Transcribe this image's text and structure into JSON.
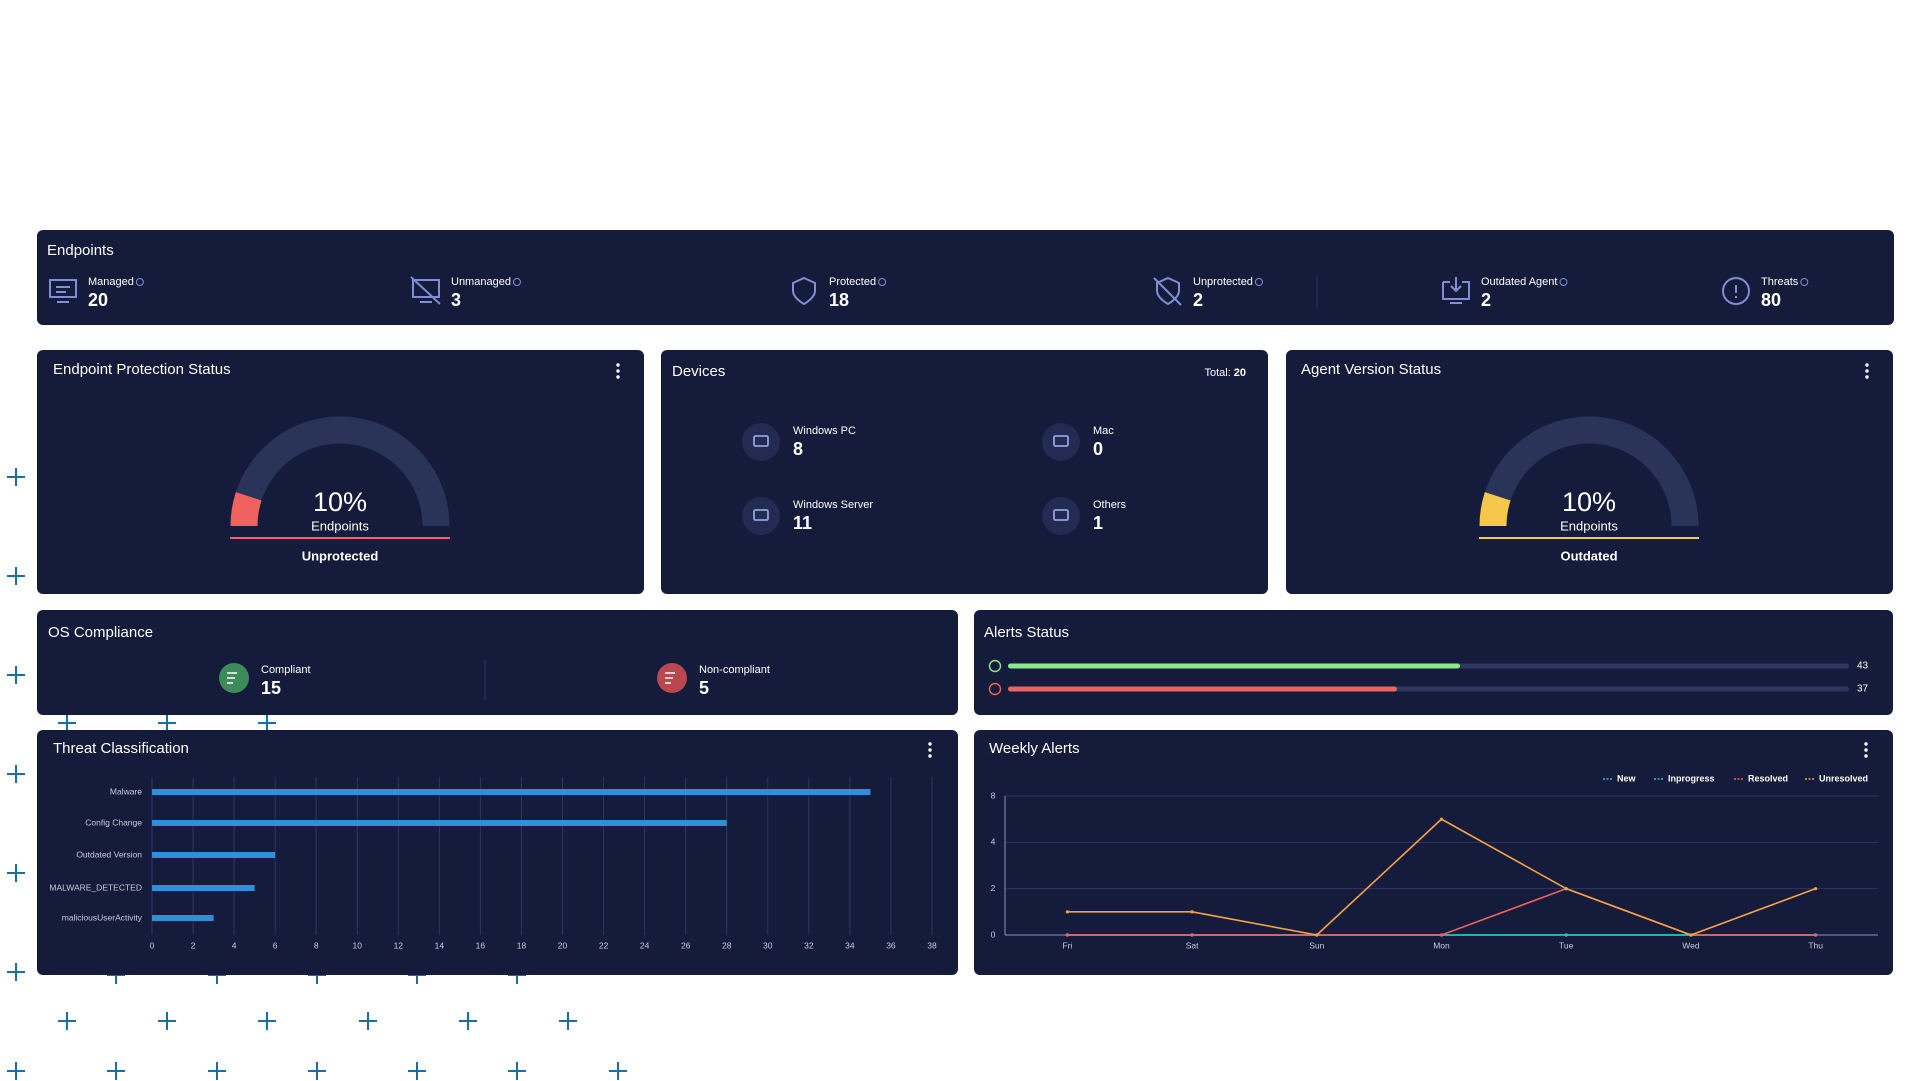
{
  "endpoints": {
    "title": "Endpoints",
    "stats": [
      {
        "label": "Managed",
        "value": 20
      },
      {
        "label": "Unmanaged",
        "value": 3
      },
      {
        "label": "Protected",
        "value": 18
      },
      {
        "label": "Unprotected",
        "value": 2
      },
      {
        "label": "Outdated Agent",
        "value": 2
      },
      {
        "label": "Threats",
        "value": 80
      }
    ]
  },
  "protection_status": {
    "type": "gauge",
    "title": "Endpoint Protection Status",
    "value": 10,
    "value_label": "10%",
    "caption": "Endpoints",
    "status": "Unprotected",
    "color": "#f0625f"
  },
  "devices": {
    "title": "Devices",
    "total_label": "Total:",
    "total": 20,
    "items": [
      {
        "label": "Windows PC",
        "value": 8
      },
      {
        "label": "Mac",
        "value": 0
      },
      {
        "label": "Windows Server",
        "value": 11
      },
      {
        "label": "Others",
        "value": 1
      }
    ]
  },
  "agent_version": {
    "type": "gauge",
    "title": "Agent Version Status",
    "value": 10,
    "value_label": "10%",
    "caption": "Endpoints",
    "status": "Outdated",
    "color": "#f5c84c"
  },
  "os_compliance": {
    "title": "OS Compliance",
    "items": [
      {
        "label": "Compliant",
        "value": 15,
        "color": "#3d8a5a"
      },
      {
        "label": "Non-compliant",
        "value": 5,
        "color": "#b8474f"
      }
    ]
  },
  "alerts_status": {
    "type": "progress",
    "title": "Alerts Status",
    "bars": [
      {
        "value": 43,
        "color": "#8ee88b"
      },
      {
        "value": 37,
        "color": "#f0625f"
      }
    ]
  },
  "threat_classification": {
    "type": "bar",
    "orientation": "horizontal",
    "title": "Threat Classification",
    "categories": [
      "Malware",
      "Config Change",
      "Outdated Version",
      "MALWARE_DETECTED",
      "maliciousUserActivity"
    ],
    "values": [
      35,
      28,
      6,
      5,
      3
    ],
    "color": "#2f8fd8",
    "xlim": [
      0,
      38
    ],
    "xticks": [
      0,
      2,
      4,
      6,
      8,
      10,
      12,
      14,
      16,
      18,
      20,
      22,
      24,
      26,
      28,
      30,
      32,
      34,
      36,
      38
    ],
    "grid": true
  },
  "weekly_alerts": {
    "type": "line",
    "title": "Weekly Alerts",
    "categories": [
      "Fri",
      "Sat",
      "Sun",
      "Mon",
      "Tue",
      "Wed",
      "Thu"
    ],
    "series": [
      {
        "name": "New",
        "color": "#3fa9f5",
        "values": [
          0,
          0,
          0,
          0,
          0,
          0,
          0
        ]
      },
      {
        "name": "Inprogress",
        "color": "#2ec4b6",
        "values": [
          0,
          0,
          0,
          0,
          0,
          0,
          0
        ]
      },
      {
        "name": "Resolved",
        "color": "#f0625f",
        "values": [
          0,
          0,
          0,
          0,
          2,
          0,
          0
        ]
      },
      {
        "name": "Unresolved",
        "color": "#f5a442",
        "values": [
          1,
          1,
          0,
          6,
          2,
          0,
          2
        ]
      }
    ],
    "ylim": [
      0,
      8
    ],
    "yticks": [
      0,
      2,
      4,
      8
    ],
    "grid": true,
    "legend": "top-right"
  }
}
